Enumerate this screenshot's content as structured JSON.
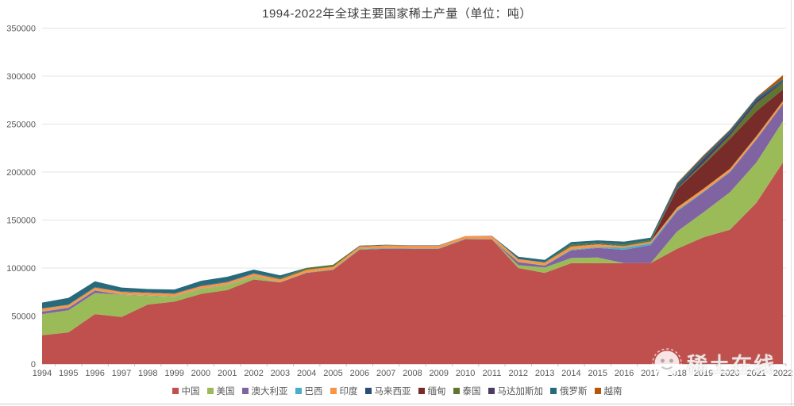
{
  "watermark": {
    "text": "稀土在线"
  },
  "chart_data": {
    "type": "area",
    "stacked": true,
    "title": "1994-2022年全球主要国家稀土产量（单位：吨）",
    "unit": "吨",
    "legend_position": "bottom",
    "grid": true,
    "ylim": [
      0,
      350000
    ],
    "y_ticks": [
      0,
      50000,
      100000,
      150000,
      200000,
      250000,
      300000,
      350000
    ],
    "x": [
      "1994",
      "1995",
      "1996",
      "1997",
      "1998",
      "1999",
      "2000",
      "2001",
      "2002",
      "2003",
      "2004",
      "2005",
      "2006",
      "2007",
      "2008",
      "2009",
      "2010",
      "2011",
      "2012",
      "2013",
      "2014",
      "2015",
      "2016",
      "2017",
      "2018",
      "2019",
      "2020",
      "2021",
      "2022"
    ],
    "series": [
      {
        "name": "中国",
        "color": "#C0504D",
        "values": [
          30000,
          33000,
          52000,
          49000,
          62000,
          65000,
          73000,
          77000,
          88000,
          85000,
          95000,
          98000,
          119000,
          120000,
          120000,
          120000,
          130000,
          130000,
          100000,
          95000,
          105000,
          105000,
          105000,
          105000,
          120000,
          132000,
          140000,
          168000,
          210000
        ]
      },
      {
        "name": "美国",
        "color": "#9BBB59",
        "values": [
          22000,
          23000,
          22000,
          23000,
          9000,
          5000,
          5000,
          5000,
          3000,
          0,
          0,
          0,
          0,
          0,
          0,
          0,
          0,
          0,
          3000,
          5500,
          5400,
          5900,
          0,
          0,
          18000,
          26000,
          39000,
          42000,
          43000
        ]
      },
      {
        "name": "澳大利亚",
        "color": "#8064A2",
        "values": [
          2500,
          2500,
          2500,
          0,
          0,
          0,
          0,
          0,
          0,
          0,
          0,
          0,
          0,
          0,
          0,
          0,
          0,
          0,
          3200,
          2000,
          8000,
          10000,
          14000,
          19000,
          21000,
          21000,
          21000,
          24000,
          18000
        ]
      },
      {
        "name": "巴西",
        "color": "#4BACC6",
        "values": [
          400,
          400,
          400,
          400,
          400,
          400,
          400,
          400,
          400,
          400,
          400,
          530,
          730,
          730,
          550,
          550,
          550,
          250,
          140,
          330,
          880,
          880,
          2200,
          1700,
          1100,
          710,
          600,
          500,
          80
        ]
      },
      {
        "name": "印度",
        "color": "#F79646",
        "values": [
          2700,
          2700,
          2700,
          2700,
          2700,
          2700,
          2700,
          2700,
          2700,
          2700,
          2700,
          2700,
          2700,
          2700,
          2700,
          2700,
          2800,
          3000,
          2900,
          2900,
          3000,
          3000,
          1500,
          1800,
          2900,
          2900,
          2900,
          2900,
          2900
        ]
      },
      {
        "name": "马来西亚",
        "color": "#2C4D75",
        "values": [
          240,
          240,
          440,
          440,
          440,
          440,
          440,
          440,
          440,
          450,
          250,
          150,
          430,
          380,
          380,
          380,
          30,
          280,
          100,
          180,
          240,
          500,
          300,
          180,
          0,
          0,
          80,
          80,
          80
        ]
      },
      {
        "name": "缅甸",
        "color": "#772C2A",
        "values": [
          0,
          0,
          0,
          0,
          0,
          0,
          0,
          0,
          0,
          0,
          0,
          0,
          0,
          0,
          0,
          0,
          0,
          0,
          0,
          0,
          0,
          0,
          0,
          0,
          19000,
          25000,
          31000,
          26000,
          12000
        ]
      },
      {
        "name": "泰国",
        "color": "#5F7530",
        "values": [
          100,
          100,
          100,
          100,
          100,
          100,
          100,
          100,
          100,
          800,
          1900,
          2000,
          500,
          450,
          0,
          0,
          0,
          0,
          0,
          120,
          2100,
          760,
          1600,
          1300,
          1000,
          1900,
          3600,
          8200,
          7100
        ]
      },
      {
        "name": "马达加斯加",
        "color": "#4D3B62",
        "values": [
          0,
          0,
          0,
          0,
          0,
          0,
          0,
          0,
          0,
          0,
          0,
          0,
          0,
          0,
          0,
          0,
          0,
          0,
          0,
          0,
          0,
          0,
          0,
          0,
          2000,
          4000,
          2800,
          3200,
          960
        ]
      },
      {
        "name": "俄罗斯",
        "color": "#276A7C",
        "values": [
          6000,
          7000,
          6000,
          4000,
          3500,
          4000,
          5000,
          5300,
          3700,
          3000,
          0,
          0,
          0,
          0,
          0,
          0,
          0,
          0,
          2400,
          2500,
          2500,
          2800,
          2800,
          2600,
          2700,
          2700,
          2700,
          2700,
          2600
        ]
      },
      {
        "name": "越南",
        "color": "#B65708",
        "values": [
          0,
          0,
          0,
          0,
          0,
          0,
          0,
          0,
          0,
          0,
          0,
          0,
          0,
          0,
          0,
          0,
          0,
          0,
          0,
          0,
          0,
          0,
          220,
          100,
          920,
          1300,
          700,
          400,
          4300
        ]
      }
    ]
  }
}
